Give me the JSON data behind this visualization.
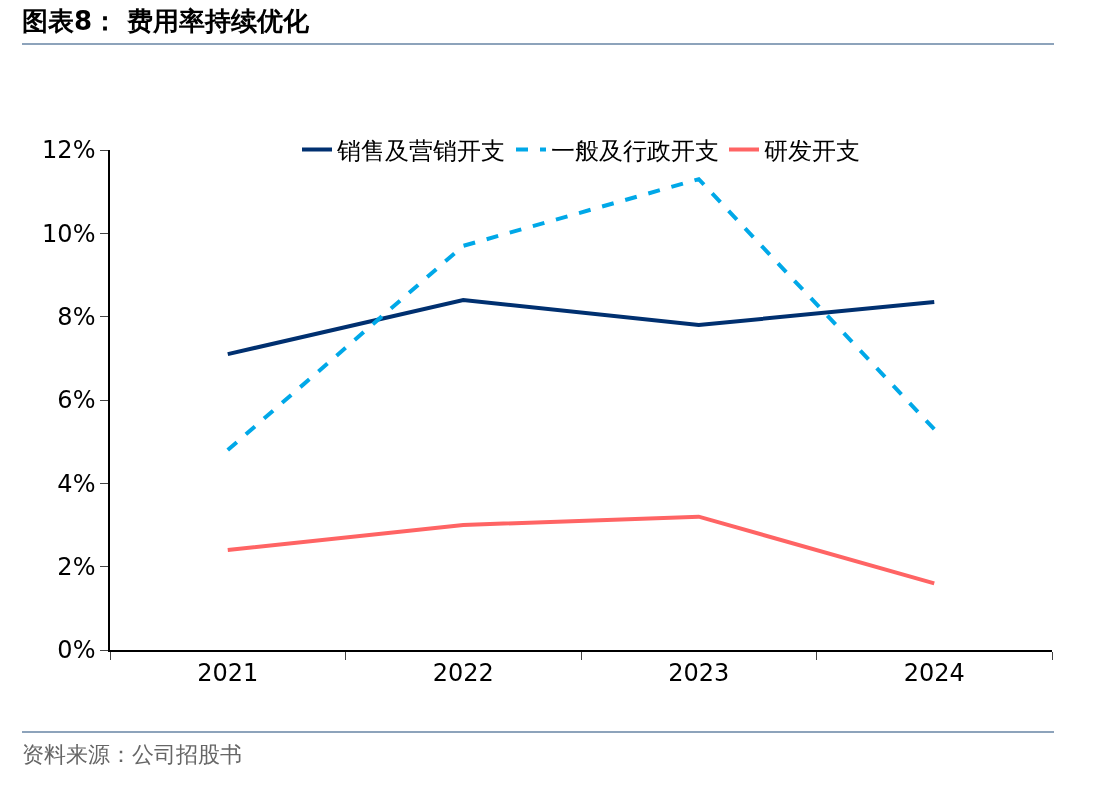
{
  "chart_data": {
    "type": "line",
    "title": "图表8： 费用率持续优化",
    "annotations": [
      "资料来源：公司招股书"
    ],
    "categories": [
      "2021",
      "2022",
      "2023",
      "2024"
    ],
    "series": [
      {
        "name": "销售及营销开支",
        "color": "#003070",
        "values": [
          7.1,
          8.4,
          7.8,
          8.35
        ],
        "line_style": "solid"
      },
      {
        "name": "一般及行政开支",
        "color": "#00a8e8",
        "values": [
          4.8,
          9.7,
          11.3,
          5.3
        ],
        "line_style": "dashed"
      },
      {
        "name": "研发开支",
        "color": "#ff6464",
        "values": [
          2.4,
          3.0,
          3.2,
          1.6
        ],
        "line_style": "solid"
      }
    ],
    "ylim": [
      0,
      12
    ],
    "yticks": [
      {
        "value": 0,
        "label": "0%"
      },
      {
        "value": 2,
        "label": "2%"
      },
      {
        "value": 4,
        "label": "4%"
      },
      {
        "value": 6,
        "label": "6%"
      },
      {
        "value": 8,
        "label": "8%"
      },
      {
        "value": 10,
        "label": "10%"
      },
      {
        "value": 12,
        "label": "12%"
      }
    ],
    "grid": false,
    "legend": "top",
    "marker": "none"
  }
}
